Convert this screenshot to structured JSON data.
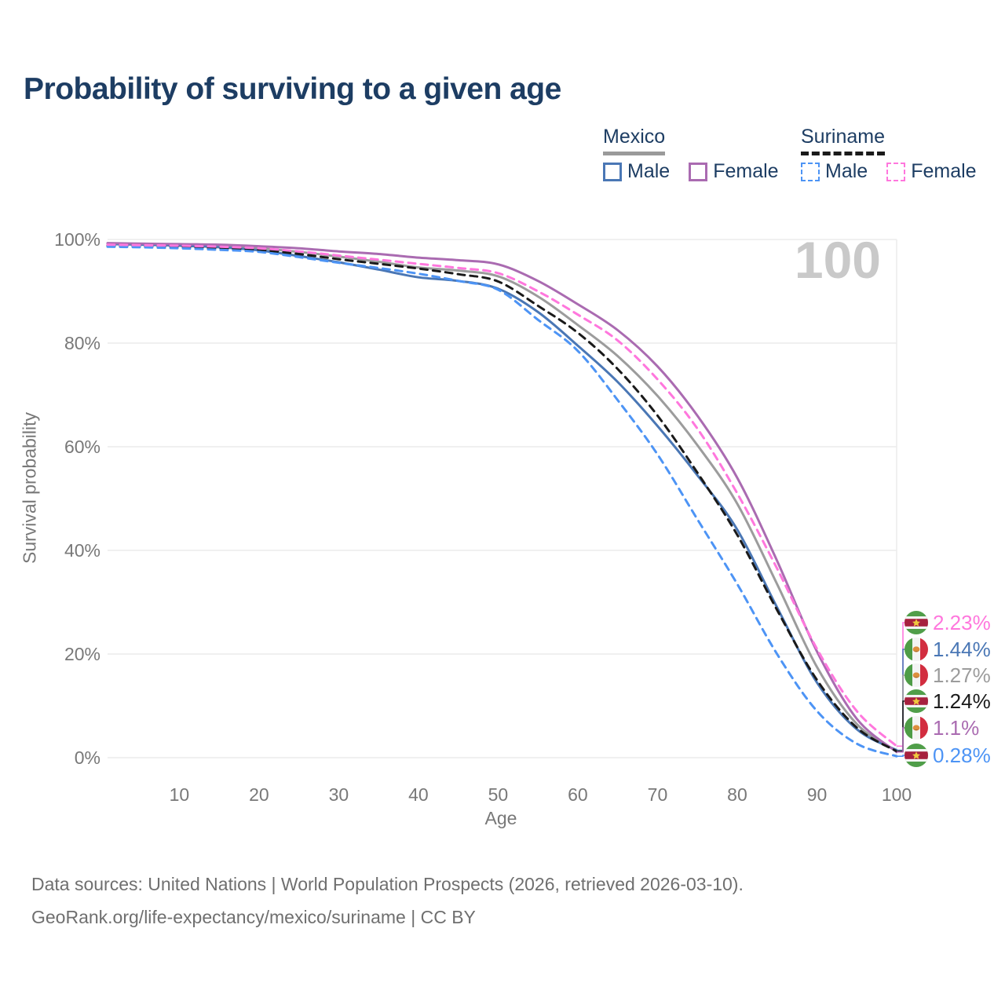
{
  "header": {
    "title": "Probability of surviving to a given age"
  },
  "legend": {
    "groups": [
      {
        "country": "Mexico",
        "line_style": "solid",
        "underline_color": "#9a9a9a",
        "items": [
          {
            "label": "Male",
            "color": "#4a77b5"
          },
          {
            "label": "Female",
            "color": "#aa6bb1"
          }
        ]
      },
      {
        "country": "Suriname",
        "line_style": "dashed",
        "underline_color": "#1a1a1a",
        "items": [
          {
            "label": "Male",
            "color": "#4d94f5"
          },
          {
            "label": "Female",
            "color": "#ff77dd"
          }
        ]
      }
    ]
  },
  "watermark": "100",
  "axes": {
    "x": {
      "title": "Age",
      "ticks": [
        10,
        20,
        30,
        40,
        50,
        60,
        70,
        80,
        90,
        100
      ],
      "min": 1,
      "max": 100
    },
    "y": {
      "title": "Survival probability",
      "ticks": [
        {
          "value": 100,
          "label": "100%"
        },
        {
          "value": 80,
          "label": "80%"
        },
        {
          "value": 60,
          "label": "60%"
        },
        {
          "value": 40,
          "label": "40%"
        },
        {
          "value": 20,
          "label": "20%"
        },
        {
          "value": 0,
          "label": "0%"
        }
      ]
    }
  },
  "end_labels": [
    {
      "series": "suriname-female",
      "flag": "suriname",
      "value": "2.23%",
      "color": "#ff77dd"
    },
    {
      "series": "mexico-male",
      "flag": "mexico",
      "value": "1.44%",
      "color": "#4a77b5"
    },
    {
      "series": "mexico-both",
      "flag": "mexico",
      "value": "1.27%",
      "color": "#9c9c9c"
    },
    {
      "series": "suriname-both",
      "flag": "suriname",
      "value": "1.24%",
      "color": "#1a1a1a"
    },
    {
      "series": "mexico-female",
      "flag": "mexico",
      "value": "1.1%",
      "color": "#aa6bb1"
    },
    {
      "series": "suriname-male",
      "flag": "suriname",
      "value": "0.28%",
      "color": "#4d94f5"
    }
  ],
  "sources": {
    "line1": "Data sources: United Nations | World Population Prospects (2026, retrieved 2026-03-10).",
    "line2": "GeoRank.org/life-expectancy/mexico/suriname | CC BY"
  },
  "chart_data": {
    "type": "line",
    "title": "Probability of surviving to a given age",
    "xlabel": "Age",
    "ylabel": "Survival probability",
    "x_range": [
      1,
      100
    ],
    "ylim_percent": [
      0,
      100
    ],
    "grid": "horizontal",
    "legend_position": "top-right",
    "ages": [
      1,
      5,
      10,
      15,
      20,
      25,
      30,
      35,
      40,
      45,
      50,
      55,
      60,
      65,
      70,
      75,
      80,
      85,
      90,
      95,
      100
    ],
    "unit": "%",
    "series": [
      {
        "key": "mexico-both",
        "name": "Mexico",
        "country": "Mexico",
        "sex": "Both",
        "style": "solid",
        "color": "#9c9c9c",
        "end_label": "1.27%",
        "values": [
          99.2,
          99.1,
          99.0,
          98.8,
          98.3,
          97.6,
          96.7,
          95.7,
          94.6,
          94.0,
          92.9,
          89.0,
          83.5,
          77.5,
          69.8,
          60.3,
          49.0,
          33.5,
          17.5,
          6.5,
          1.27
        ]
      },
      {
        "key": "mexico-male",
        "name": "Mexico Male",
        "country": "Mexico",
        "sex": "Male",
        "style": "solid",
        "color": "#4a77b5",
        "end_label": "1.44%",
        "values": [
          99.1,
          99.0,
          98.8,
          98.5,
          97.9,
          96.8,
          95.6,
          94.2,
          92.7,
          92.0,
          90.5,
          86.0,
          79.5,
          72.5,
          64.0,
          54.5,
          44.0,
          29.0,
          14.5,
          5.5,
          1.44
        ]
      },
      {
        "key": "mexico-female",
        "name": "Mexico Female",
        "country": "Mexico",
        "sex": "Female",
        "style": "solid",
        "color": "#aa6bb1",
        "end_label": "1.1%",
        "values": [
          99.3,
          99.2,
          99.1,
          99.0,
          98.7,
          98.3,
          97.7,
          97.2,
          96.5,
          96.0,
          95.2,
          92.0,
          87.5,
          82.5,
          75.5,
          66.0,
          54.0,
          38.0,
          20.5,
          7.5,
          1.1
        ]
      },
      {
        "key": "suriname-both",
        "name": "Suriname",
        "country": "Suriname",
        "sex": "Both",
        "style": "dashed",
        "color": "#1a1a1a",
        "end_label": "1.24%",
        "values": [
          98.8,
          98.7,
          98.6,
          98.3,
          98.0,
          97.2,
          96.2,
          95.3,
          94.4,
          93.3,
          91.9,
          87.2,
          82.0,
          75.0,
          66.0,
          55.0,
          43.0,
          28.5,
          15.0,
          5.8,
          1.24
        ]
      },
      {
        "key": "suriname-male",
        "name": "Suriname Male",
        "country": "Suriname",
        "sex": "Male",
        "style": "dashed",
        "color": "#4d94f5",
        "end_label": "0.28%",
        "values": [
          98.6,
          98.5,
          98.3,
          98.0,
          97.6,
          96.6,
          95.5,
          94.5,
          93.4,
          92.0,
          90.3,
          84.5,
          78.5,
          69.0,
          58.5,
          46.0,
          33.5,
          20.0,
          9.0,
          2.7,
          0.28
        ]
      },
      {
        "key": "suriname-female",
        "name": "Suriname Female",
        "country": "Suriname",
        "sex": "Female",
        "style": "dashed",
        "color": "#ff77dd",
        "end_label": "2.23%",
        "values": [
          99.0,
          98.9,
          98.8,
          98.6,
          98.3,
          97.7,
          96.9,
          96.1,
          95.3,
          94.5,
          93.5,
          90.0,
          85.5,
          80.5,
          73.0,
          63.5,
          51.0,
          36.5,
          21.0,
          9.0,
          2.23
        ]
      }
    ]
  }
}
